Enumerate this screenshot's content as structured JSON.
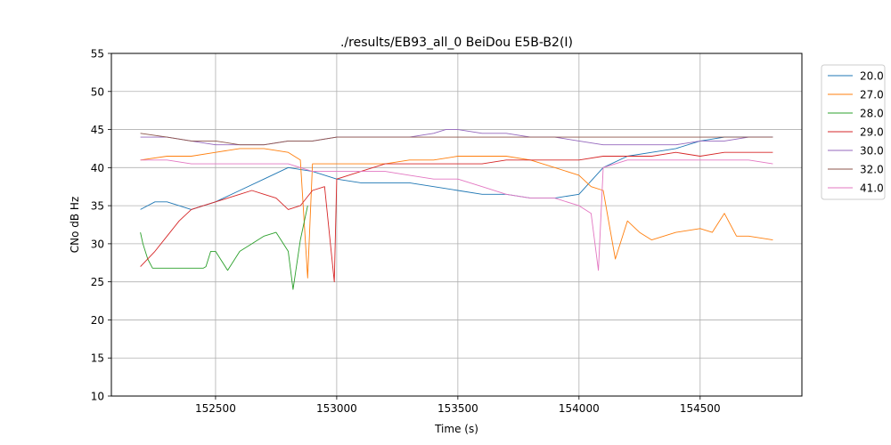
{
  "chart_data": {
    "type": "line",
    "title": "./results/EB93_all_0 BeiDou E5B-B2(I)",
    "xlabel": "Time (s)",
    "ylabel": "CNo dB Hz",
    "xlim": [
      152070,
      154920
    ],
    "ylim": [
      10,
      55
    ],
    "xticks": [
      152500,
      153000,
      153500,
      154000,
      154500
    ],
    "yticks": [
      10,
      15,
      20,
      25,
      30,
      35,
      40,
      45,
      50,
      55
    ],
    "grid": true,
    "legend": "outside-top-right",
    "series": [
      {
        "name": "20.0",
        "color": "#1f77b4",
        "x": [
          152190,
          152250,
          152300,
          152400,
          152500,
          152600,
          152700,
          152800,
          152900,
          153000,
          153100,
          153200,
          153300,
          153400,
          153500,
          153600,
          153700,
          153800,
          153900,
          154000,
          154100,
          154200,
          154300,
          154400,
          154500,
          154600,
          154700,
          154800
        ],
        "y": [
          34.5,
          35.5,
          35.5,
          34.5,
          35.5,
          37,
          38.5,
          40,
          39.5,
          38.5,
          38,
          38,
          38,
          37.5,
          37,
          36.5,
          36.5,
          36,
          36,
          36.5,
          40,
          41.5,
          42,
          42.5,
          43.5,
          44,
          44,
          44
        ]
      },
      {
        "name": "27.0",
        "color": "#ff7f0e",
        "x": [
          152190,
          152300,
          152400,
          152500,
          152600,
          152700,
          152800,
          152850,
          152880,
          152900,
          153000,
          153100,
          153200,
          153300,
          153400,
          153500,
          153600,
          153700,
          153800,
          153900,
          154000,
          154050,
          154100,
          154150,
          154200,
          154250,
          154300,
          154400,
          154500,
          154550,
          154600,
          154650,
          154700,
          154800
        ],
        "y": [
          41,
          41.5,
          41.5,
          42,
          42.5,
          42.5,
          42,
          41,
          25.5,
          40.5,
          40.5,
          40.5,
          40.5,
          41,
          41,
          41.5,
          41.5,
          41.5,
          41,
          40,
          39,
          37.5,
          37,
          28,
          33,
          31.5,
          30.5,
          31.5,
          32,
          31.5,
          34,
          31,
          31,
          30.5
        ]
      },
      {
        "name": "28.0",
        "color": "#2ca02c",
        "x": [
          152190,
          152200,
          152220,
          152240,
          152300,
          152350,
          152400,
          152450,
          152460,
          152480,
          152500,
          152550,
          152600,
          152650,
          152700,
          152750,
          152800,
          152820,
          152850,
          152880
        ],
        "y": [
          31.5,
          30,
          28,
          26.8,
          26.8,
          26.8,
          26.8,
          26.8,
          27,
          29,
          29,
          26.5,
          29,
          30,
          31,
          31.5,
          29,
          24,
          30.5,
          35
        ]
      },
      {
        "name": "29.0",
        "color": "#d62728",
        "x": [
          152190,
          152250,
          152300,
          152350,
          152400,
          152450,
          152500,
          152550,
          152600,
          152650,
          152700,
          152750,
          152800,
          152850,
          152900,
          152950,
          152990,
          153000,
          153100,
          153200,
          153300,
          153400,
          153500,
          153600,
          153700,
          153800,
          153900,
          154000,
          154100,
          154200,
          154300,
          154400,
          154500,
          154600,
          154700,
          154800
        ],
        "y": [
          27,
          29,
          31,
          33,
          34.5,
          35,
          35.5,
          36,
          36.5,
          37,
          36.5,
          36,
          34.5,
          35,
          37,
          37.5,
          25,
          38.5,
          39.5,
          40.5,
          40.5,
          40.5,
          40.5,
          40.5,
          41,
          41,
          41,
          41,
          41.5,
          41.5,
          41.5,
          42,
          41.5,
          42,
          42,
          42
        ]
      },
      {
        "name": "30.0",
        "color": "#9467bd",
        "x": [
          152190,
          152300,
          152400,
          152500,
          152600,
          152700,
          152800,
          152900,
          153000,
          153100,
          153200,
          153300,
          153400,
          153450,
          153500,
          153600,
          153700,
          153800,
          153900,
          154000,
          154100,
          154200,
          154300,
          154400,
          154500,
          154600,
          154700,
          154800
        ],
        "y": [
          44,
          44,
          43.5,
          43,
          43,
          43,
          43.5,
          43.5,
          44,
          44,
          44,
          44,
          44.5,
          45,
          45,
          44.5,
          44.5,
          44,
          44,
          43.5,
          43,
          43,
          43,
          43,
          43.5,
          43.5,
          44,
          44
        ]
      },
      {
        "name": "32.0",
        "color": "#8c564b",
        "x": [
          152190,
          152300,
          152400,
          152500,
          152600,
          152700,
          152800,
          152900,
          153000,
          153100,
          153200,
          153300,
          153400,
          153500,
          153600,
          153700,
          153800,
          153900,
          154000,
          154100,
          154200,
          154300,
          154400,
          154500,
          154600,
          154700,
          154800
        ],
        "y": [
          44.5,
          44,
          43.5,
          43.5,
          43,
          43,
          43.5,
          43.5,
          44,
          44,
          44,
          44,
          44,
          44,
          44,
          44,
          44,
          44,
          44,
          44,
          44,
          44,
          44,
          44,
          44,
          44,
          44
        ]
      },
      {
        "name": "41.0",
        "color": "#e377c2",
        "x": [
          152190,
          152300,
          152400,
          152500,
          152600,
          152700,
          152800,
          152900,
          153000,
          153100,
          153200,
          153300,
          153400,
          153500,
          153600,
          153700,
          153800,
          153900,
          154000,
          154050,
          154080,
          154100,
          154200,
          154300,
          154400,
          154500,
          154600,
          154700,
          154800
        ],
        "y": [
          41,
          41,
          40.5,
          40.5,
          40.5,
          40.5,
          40.5,
          39.5,
          39.5,
          39.5,
          39.5,
          39,
          38.5,
          38.5,
          37.5,
          36.5,
          36,
          36,
          35,
          34,
          26.5,
          40,
          41,
          41,
          41,
          41,
          41,
          41,
          40.5
        ]
      }
    ]
  }
}
